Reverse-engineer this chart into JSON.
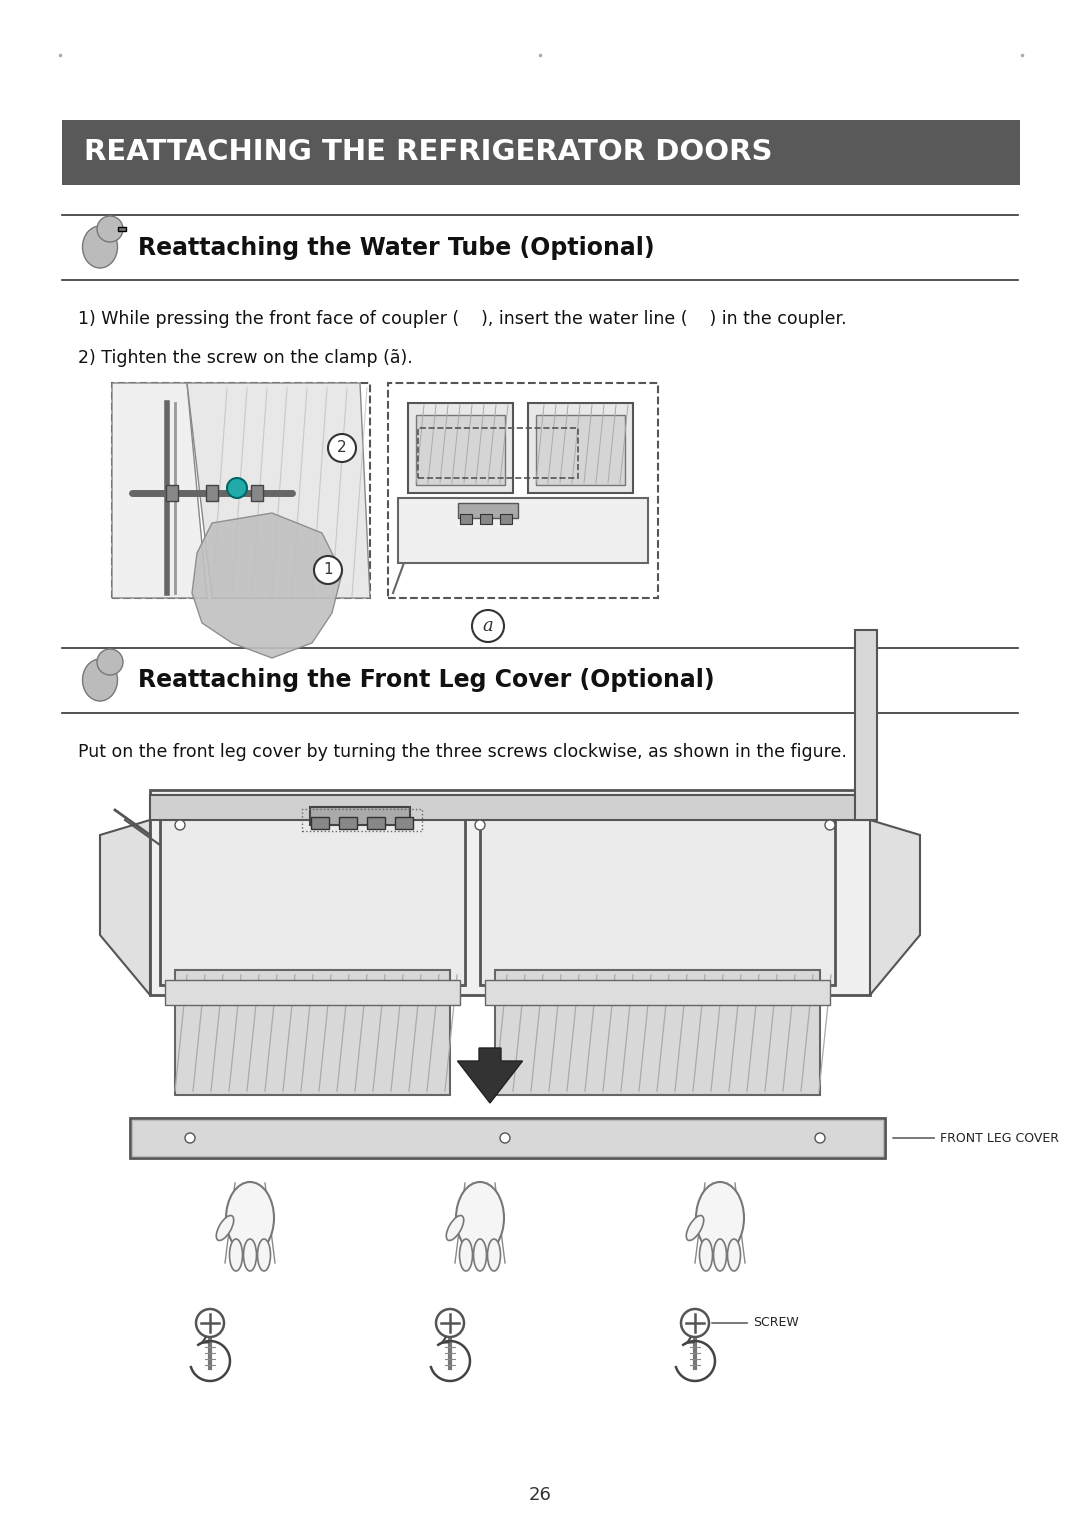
{
  "page_bg": "#ffffff",
  "header_bg": "#595959",
  "header_text": "REATTACHING THE REFRIGERATOR DOORS",
  "header_text_color": "#ffffff",
  "section1_title": "Reattaching the Water Tube (Optional)",
  "section2_title": "Reattaching the Front Leg Cover (Optional)",
  "instruction1_line1": "1) While pressing the front face of coupler (    ), insert the water line (    ) in the coupler.",
  "instruction1_line2": "2) Tighten the screw on the clamp (ã).",
  "instruction2_body": "Put on the front leg cover by turning the three screws clockwise, as shown in the figure.",
  "page_number": "26",
  "title_fontsize": 17,
  "header_fontsize": 21,
  "body_fontsize": 12.5,
  "line_color": "#333333",
  "dark_gray": "#444444",
  "mid_gray": "#888888",
  "light_gray": "#cccccc",
  "very_light_gray": "#e8e8e8"
}
